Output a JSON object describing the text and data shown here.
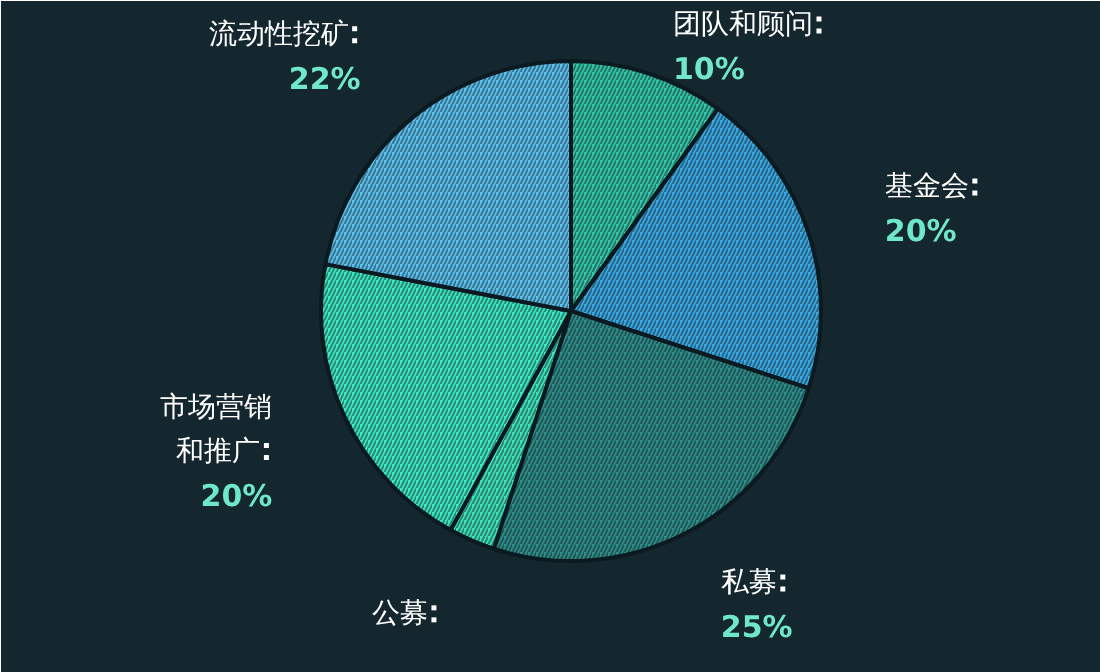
{
  "chart_data": {
    "type": "pie",
    "categories": [
      "团队和顾问",
      "基金会",
      "私募",
      "公募",
      "市场营销和推广",
      "流动性挖矿"
    ],
    "values": [
      10,
      20,
      25,
      3,
      20,
      22
    ],
    "value_labels": [
      "10%",
      "20%",
      "25%",
      null,
      "20%",
      "22%"
    ],
    "colors": [
      "#35c4a6",
      "#3aa6e0",
      "#2e8b86",
      "#3fe0b8",
      "#3ee6c0",
      "#5cc0ec"
    ]
  }
}
